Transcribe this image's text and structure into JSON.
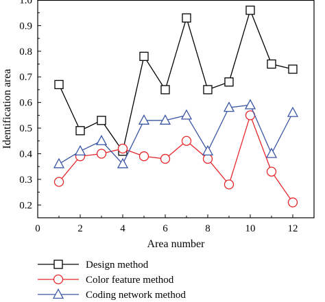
{
  "chart_data": {
    "type": "line",
    "title": "",
    "xlabel": "Area number",
    "ylabel": "Identification area",
    "xlim": [
      0,
      13
    ],
    "ylim": [
      0.15,
      1.0
    ],
    "xticks": [
      0,
      2,
      4,
      6,
      8,
      10,
      12
    ],
    "xtick_labels": [
      "0",
      "2",
      "4",
      "6",
      "8",
      "10",
      "12"
    ],
    "yticks": [
      0.2,
      0.3,
      0.4,
      0.5,
      0.6,
      0.7,
      0.8,
      0.9,
      1.0
    ],
    "ytick_labels": [
      "0.2",
      "0.3",
      "0.4",
      "0.5",
      "0.6",
      "0.7",
      "0.8",
      "0.9",
      "1.0"
    ],
    "grid": false,
    "legend_position": "bottom",
    "x": [
      1,
      2,
      3,
      4,
      5,
      6,
      7,
      8,
      9,
      10,
      11,
      12
    ],
    "series": [
      {
        "name": "Design method",
        "color": "#000000",
        "marker": "square",
        "values": [
          0.67,
          0.49,
          0.53,
          0.41,
          0.78,
          0.65,
          0.93,
          0.65,
          0.68,
          0.96,
          0.75,
          0.73
        ]
      },
      {
        "name": "Color feature method",
        "color": "#e8262a",
        "marker": "circle",
        "values": [
          0.29,
          0.39,
          0.4,
          0.42,
          0.39,
          0.38,
          0.45,
          0.38,
          0.28,
          0.55,
          0.33,
          0.21
        ]
      },
      {
        "name": "Coding network method",
        "color": "#3a55a4",
        "marker": "triangle",
        "values": [
          0.36,
          0.41,
          0.45,
          0.36,
          0.53,
          0.53,
          0.55,
          0.41,
          0.58,
          0.59,
          0.4,
          0.56
        ]
      }
    ]
  }
}
